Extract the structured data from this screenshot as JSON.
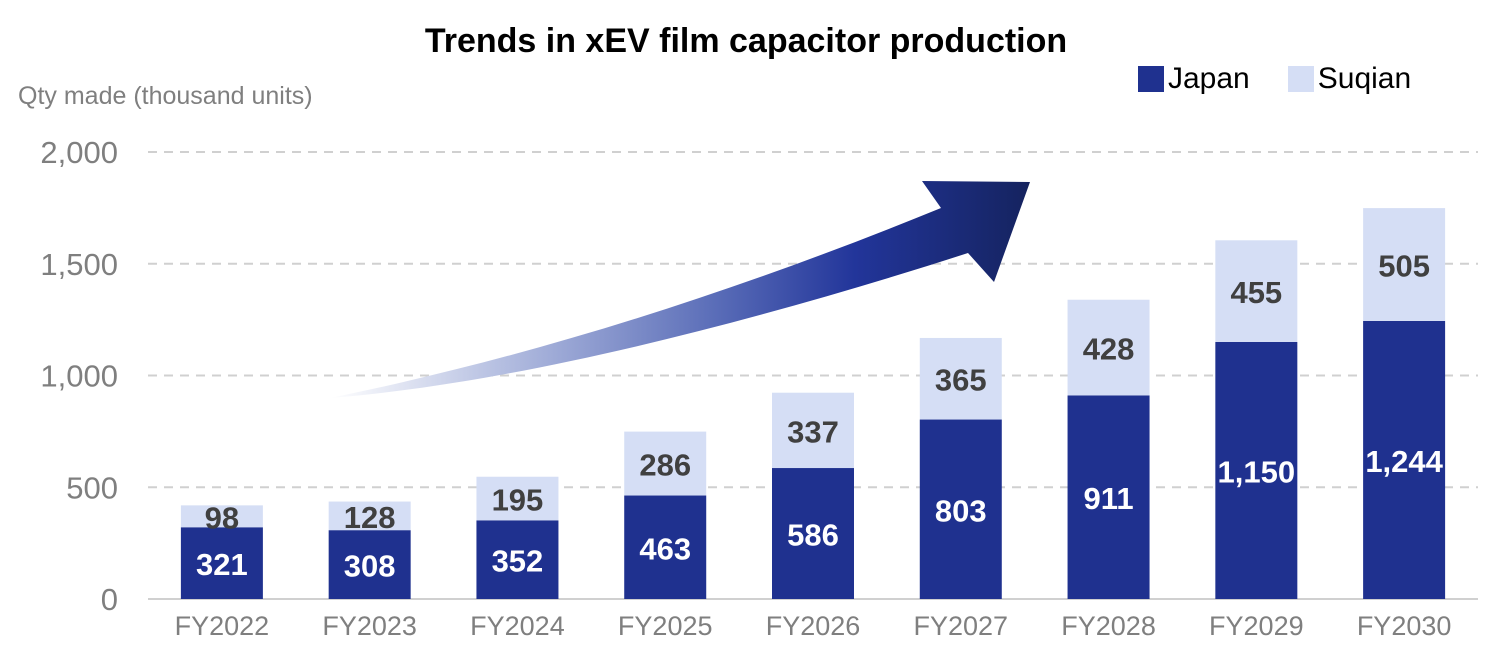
{
  "chart_data": {
    "type": "bar",
    "stacked": true,
    "title": "Trends in xEV film capacitor production",
    "ylabel": "Qty made (thousand units)",
    "xlabel": "",
    "categories": [
      "FY2022",
      "FY2023",
      "FY2024",
      "FY2025",
      "FY2026",
      "FY2027",
      "FY2028",
      "FY2029",
      "FY2030"
    ],
    "series": [
      {
        "name": "Japan",
        "color": "#1f318f",
        "values": [
          321,
          308,
          352,
          463,
          586,
          803,
          911,
          1150,
          1244
        ]
      },
      {
        "name": "Suqian",
        "color": "#d5def5",
        "values": [
          98,
          128,
          195,
          286,
          337,
          365,
          428,
          455,
          505
        ]
      }
    ],
    "value_labels": {
      "Japan": [
        "321",
        "308",
        "352",
        "463",
        "586",
        "803",
        "911",
        "1,150",
        "1,244"
      ],
      "Suqian": [
        "98",
        "128",
        "195",
        "286",
        "337",
        "365",
        "428",
        "455",
        "505"
      ]
    },
    "ylim": [
      0,
      2000
    ],
    "yticks": [
      0,
      500,
      1000,
      1500,
      2000
    ],
    "ytick_labels": [
      "0",
      "500",
      "1,000",
      "1,500",
      "2,000"
    ],
    "grid": true,
    "gridline_style": "dashed",
    "legend_position": "top-right",
    "annotation": "upward-trend-arrow"
  }
}
